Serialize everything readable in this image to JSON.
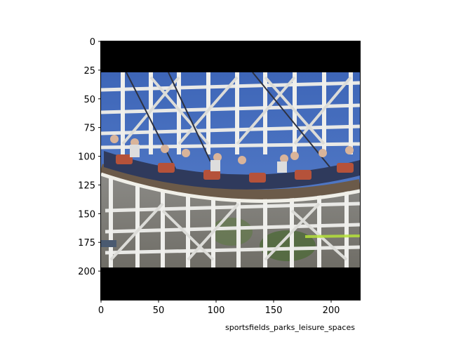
{
  "figure": {
    "caption": "sportsfields_parks_leisure_spaces",
    "image_description_icon": "roller-coaster-photo",
    "axes": {
      "x_ticks": [
        "0",
        "50",
        "100",
        "150",
        "200"
      ],
      "y_ticks": [
        "0",
        "25",
        "50",
        "75",
        "100",
        "125",
        "150",
        "175",
        "200"
      ],
      "xlim": [
        0,
        225
      ],
      "ylim": [
        225,
        0
      ]
    }
  }
}
